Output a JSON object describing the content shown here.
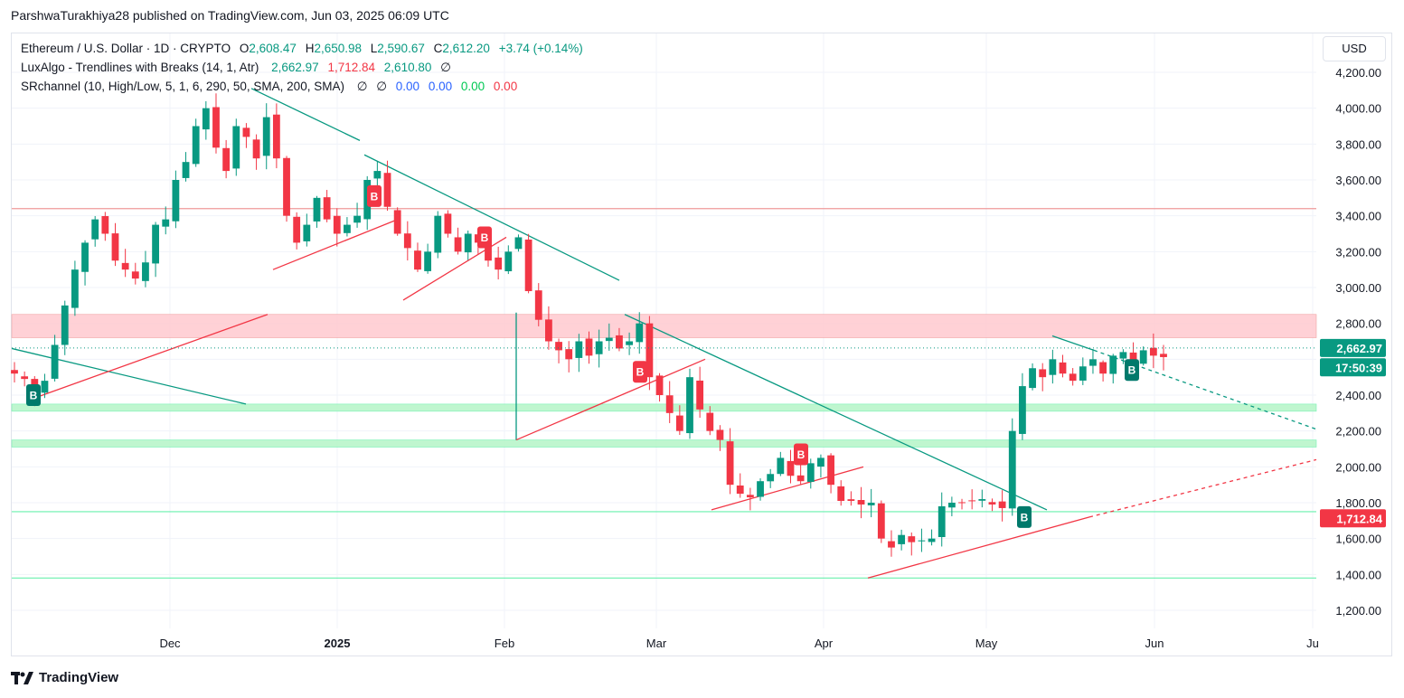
{
  "publisher": "ParshwaTurakhiya28 published on TradingView.com, Jun 03, 2025 06:09 UTC",
  "legend": {
    "symbol": "Ethereum / U.S. Dollar · 1D · CRYPTO",
    "o_label": "O",
    "o": "2,608.47",
    "h_label": "H",
    "h": "2,650.98",
    "l_label": "L",
    "l": "2,590.67",
    "c_label": "C",
    "c": "2,612.20",
    "change": "+3.74 (+0.14%)",
    "ind1_name": "LuxAlgo - Trendlines with Breaks (14, 1, Atr)",
    "ind1_v1": "2,662.97",
    "ind1_v2": "1,712.84",
    "ind1_v3": "2,610.80",
    "ind1_v4": "∅",
    "ind2_name": "SRchannel (10, High/Low, 5, 1, 6, 290, 50, SMA, 200, SMA)",
    "ind2_v1": "∅",
    "ind2_v2": "∅",
    "ind2_v3": "0.00",
    "ind2_v4": "0.00",
    "ind2_v5": "0.00",
    "ind2_v6": "0.00"
  },
  "currency": "USD",
  "footer_brand": "TradingView",
  "price_badges": {
    "last": "2,662.97",
    "countdown": "17:50:39",
    "lower_trend": "1,712.84"
  },
  "colors": {
    "up": "#089981",
    "down": "#f23645",
    "resistance_zone": "#ffcdd2",
    "support_zone": "#b9f6ca",
    "trend_teal": "#089981",
    "trend_red": "#f23645"
  },
  "chart_data": {
    "type": "candlestick",
    "symbol": "ETHUSD",
    "interval": "1D",
    "x_ticks": [
      "Dec",
      "2025",
      "Feb",
      "Mar",
      "Apr",
      "May",
      "Jun",
      "Ju"
    ],
    "y_ticks": [
      "4,200.00",
      "4,000.00",
      "3,800.00",
      "3,600.00",
      "3,400.00",
      "3,200.00",
      "3,000.00",
      "2,800.00",
      "2,400.00",
      "2,200.00",
      "2,000.00",
      "1,800.00",
      "1,600.00",
      "1,400.00",
      "1,200.00"
    ],
    "ylim": [
      1140,
      4400
    ],
    "ohlc_close_path": [
      2520,
      2490,
      2410,
      2480,
      2680,
      2900,
      3100,
      3250,
      3380,
      3300,
      3150,
      3100,
      3050,
      3140,
      3350,
      3380,
      3600,
      3700,
      3900,
      4000,
      3780,
      3650,
      3900,
      3840,
      3720,
      3950,
      3720,
      3400,
      3250,
      3350,
      3500,
      3380,
      3300,
      3350,
      3400,
      3600,
      3650,
      3450,
      3300,
      3220,
      3100,
      3200,
      3400,
      3300,
      3200,
      3300,
      3250,
      3150,
      3100,
      3200,
      3280,
      2980,
      2820,
      2700,
      2650,
      2600,
      2700,
      2620,
      2700,
      2720,
      2660,
      2700,
      2800,
      2500,
      2400,
      2300,
      2200,
      2500,
      2320,
      2200,
      2150,
      1900,
      1850,
      1830,
      1920,
      1960,
      2050,
      1950,
      1920,
      2020,
      2050,
      1900,
      1810,
      1810,
      1790,
      1800,
      1600,
      1550,
      1620,
      1580,
      1590,
      1600,
      1780,
      1800,
      1800,
      1810,
      1820,
      1790,
      1770,
      2200,
      2450,
      2550,
      2500,
      2600,
      2520,
      2480,
      2560,
      2600,
      2520,
      2620,
      2640,
      2560,
      2650,
      2620,
      2612
    ],
    "zones": [
      {
        "type": "resistance",
        "from": 2720,
        "to": 2850
      },
      {
        "type": "support",
        "from": 2310,
        "to": 2350
      },
      {
        "type": "support",
        "from": 2110,
        "to": 2150
      }
    ],
    "horizontal_levels": [
      3440,
      1750,
      1380
    ],
    "last_price": 2612.2,
    "break_labels": [
      {
        "label": "B",
        "color": "up"
      },
      {
        "label": "B",
        "color": "down"
      },
      {
        "label": "B",
        "color": "down"
      },
      {
        "label": "B",
        "color": "down"
      },
      {
        "label": "B",
        "color": "down"
      },
      {
        "label": "B",
        "color": "up"
      },
      {
        "label": "B",
        "color": "up"
      }
    ]
  }
}
